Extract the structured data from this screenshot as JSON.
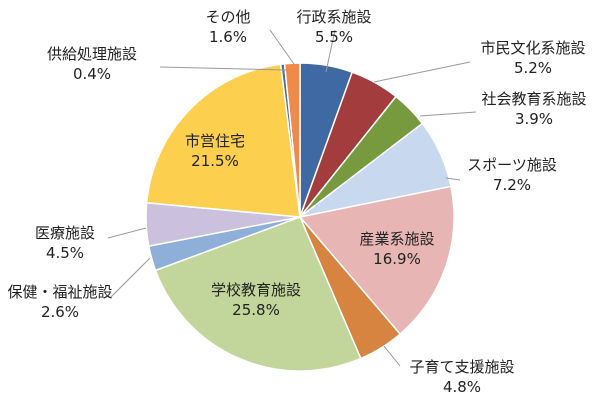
{
  "chart_data": {
    "type": "pie",
    "title": "",
    "start_angle_deg": 0,
    "direction": "clockwise",
    "slices": [
      {
        "name": "行政系施設",
        "percent_label": "5.5%",
        "value": 5.5,
        "color": "#3f69a3"
      },
      {
        "name": "市民文化系施設",
        "percent_label": "5.2%",
        "value": 5.2,
        "color": "#a33c3c"
      },
      {
        "name": "社会教育系施設",
        "percent_label": "3.9%",
        "value": 3.9,
        "color": "#779a3e"
      },
      {
        "name": "スポーツ施設",
        "percent_label": "7.2%",
        "value": 7.2,
        "color": "#c8d8ef"
      },
      {
        "name": "産業系施設",
        "percent_label": "16.9%",
        "value": 16.9,
        "color": "#e8b5b5"
      },
      {
        "name": "子育て支援施設",
        "percent_label": "4.8%",
        "value": 4.8,
        "color": "#d6843f"
      },
      {
        "name": "学校教育施設",
        "percent_label": "25.8%",
        "value": 25.8,
        "color": "#c2d69b"
      },
      {
        "name": "保健・福祉施設",
        "percent_label": "2.6%",
        "value": 2.6,
        "color": "#8eb0d8"
      },
      {
        "name": "医療施設",
        "percent_label": "4.5%",
        "value": 4.5,
        "color": "#cbc0dd"
      },
      {
        "name": "市営住宅",
        "percent_label": "21.5%",
        "value": 21.5,
        "color": "#fccf4e"
      },
      {
        "name": "供給処理施設",
        "percent_label": "0.4%",
        "value": 0.4,
        "color": "#4e6e8e"
      },
      {
        "name": "その他",
        "percent_label": "1.6%",
        "value": 1.6,
        "color": "#ee8a4a"
      }
    ]
  }
}
